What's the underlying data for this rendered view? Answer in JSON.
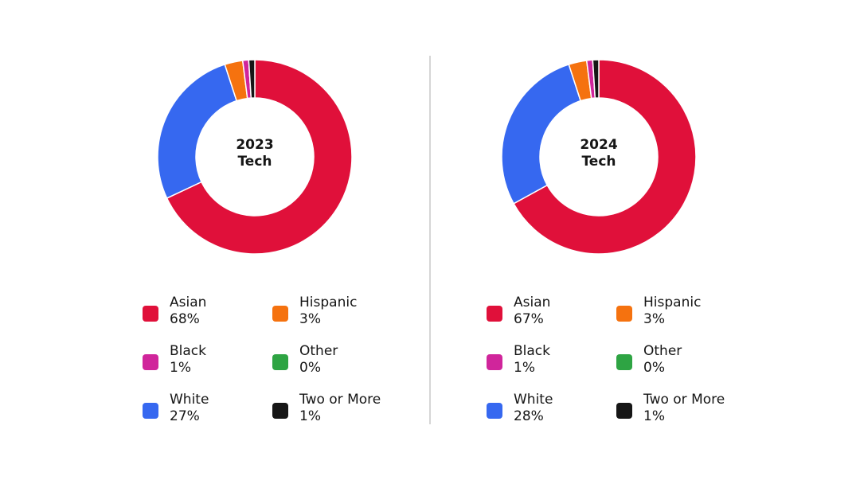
{
  "chart_data": [
    {
      "type": "donut",
      "title": "2023",
      "subtitle": "Tech",
      "categories": [
        "Asian",
        "White",
        "Hispanic",
        "Black",
        "Other",
        "Two or More"
      ],
      "values": [
        68,
        27,
        3,
        1,
        0,
        1
      ],
      "value_labels": [
        "68%",
        "27%",
        "3%",
        "1%",
        "0%",
        "1%"
      ],
      "colors": [
        "#e0103a",
        "#3668f0",
        "#f5720f",
        "#d0259b",
        "#2ea443",
        "#161616"
      ]
    },
    {
      "type": "donut",
      "title": "2024",
      "subtitle": "Tech",
      "categories": [
        "Asian",
        "White",
        "Hispanic",
        "Black",
        "Other",
        "Two or More"
      ],
      "values": [
        67,
        28,
        3,
        1,
        0,
        1
      ],
      "value_labels": [
        "67%",
        "28%",
        "3%",
        "1%",
        "0%",
        "1%"
      ],
      "colors": [
        "#e0103a",
        "#3668f0",
        "#f5720f",
        "#d0259b",
        "#2ea443",
        "#161616"
      ]
    }
  ]
}
